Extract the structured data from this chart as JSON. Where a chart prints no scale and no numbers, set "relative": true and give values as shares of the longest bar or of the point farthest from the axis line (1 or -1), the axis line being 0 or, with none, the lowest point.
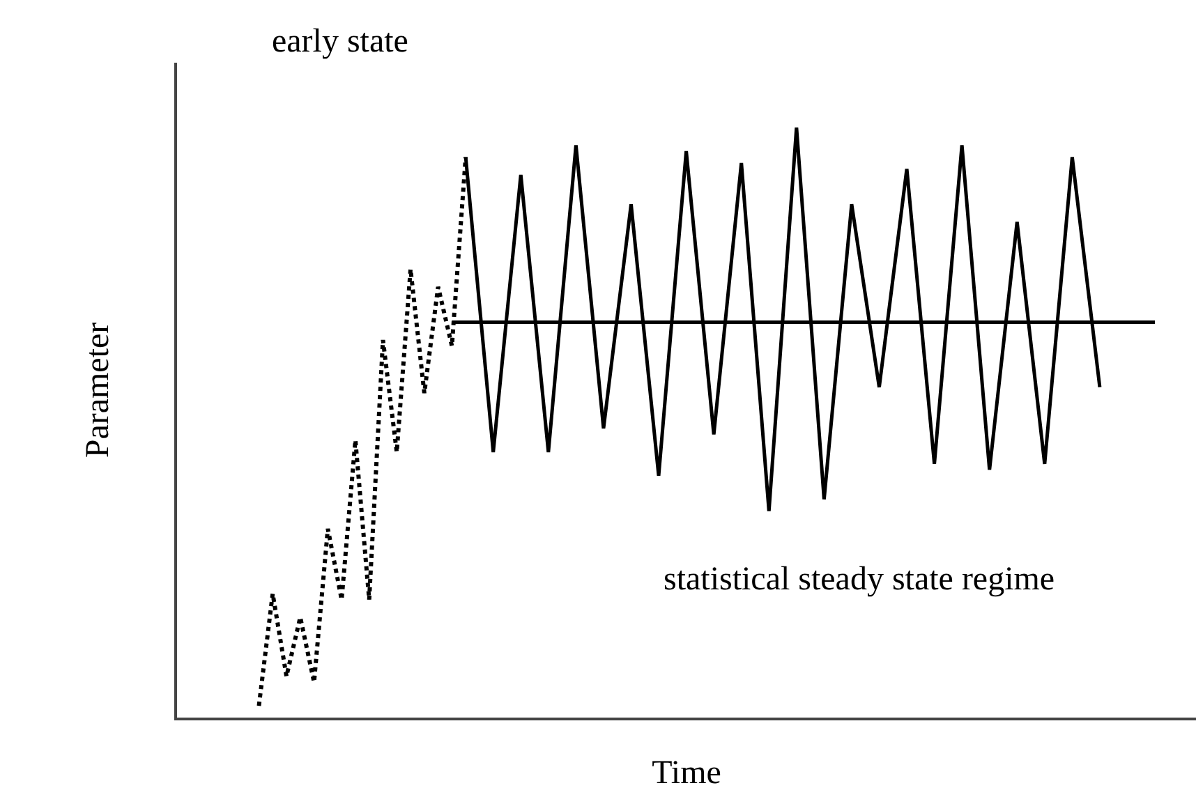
{
  "chart_data": {
    "type": "line",
    "relative": true,
    "xlabel": "Time",
    "ylabel": "Parameter",
    "marker": "none",
    "annotations": [
      "early state",
      "statistical steady state regime"
    ],
    "categories": [
      null,
      null,
      null,
      null,
      null,
      null,
      null,
      null,
      null,
      null,
      null,
      null,
      null,
      null,
      null,
      null,
      null,
      null,
      null,
      null,
      null,
      null,
      null,
      null,
      null,
      null,
      null,
      null,
      null,
      null,
      null,
      null,
      null,
      null,
      null,
      null,
      null,
      null,
      null,
      null,
      null,
      null,
      null,
      null,
      null,
      null,
      null,
      null,
      null,
      null,
      null,
      null,
      null,
      null,
      null,
      null,
      null,
      null,
      null,
      null,
      null,
      null,
      null,
      null,
      null,
      null
    ],
    "series": [
      {
        "color": "#000000",
        "line_style": "dotted",
        "values": [
          0.02,
          0.21,
          0.07,
          0.17,
          0.06,
          0.32,
          0.2,
          0.47,
          0.2,
          0.64,
          0.45,
          0.76,
          0.55,
          0.73,
          0.63,
          0.95,
          null,
          null,
          null,
          null,
          null,
          null,
          null,
          null,
          null,
          null,
          null,
          null,
          null,
          null,
          null,
          null,
          null,
          null,
          null,
          null,
          null,
          null,
          null,
          null,
          null,
          null,
          null,
          null,
          null,
          null,
          null,
          null,
          null,
          null,
          null,
          null,
          null,
          null,
          null,
          null,
          null,
          null,
          null,
          null,
          null,
          null,
          null,
          null,
          null,
          null
        ]
      },
      {
        "color": "#000000",
        "line_style": "solid",
        "values": [
          null,
          null,
          null,
          null,
          null,
          null,
          null,
          null,
          null,
          null,
          null,
          null,
          null,
          null,
          null,
          0.95,
          null,
          0.45,
          null,
          0.92,
          null,
          0.45,
          null,
          0.97,
          null,
          0.49,
          null,
          0.87,
          null,
          0.41,
          null,
          0.96,
          null,
          0.48,
          null,
          0.94,
          null,
          0.35,
          null,
          1.0,
          null,
          0.37,
          null,
          0.87,
          null,
          0.56,
          null,
          0.93,
          null,
          0.43,
          null,
          0.97,
          null,
          0.42,
          null,
          0.84,
          null,
          0.43,
          null,
          0.95,
          null,
          0.56,
          null,
          null,
          null,
          null
        ]
      },
      {
        "color": "#000000",
        "line_style": "solid",
        "values": [
          null,
          null,
          null,
          null,
          null,
          null,
          null,
          null,
          null,
          null,
          null,
          null,
          null,
          null,
          0.67,
          null,
          null,
          null,
          null,
          null,
          null,
          null,
          null,
          null,
          null,
          null,
          null,
          null,
          null,
          null,
          null,
          null,
          null,
          null,
          null,
          null,
          null,
          null,
          null,
          null,
          null,
          null,
          null,
          null,
          null,
          null,
          null,
          null,
          null,
          null,
          null,
          null,
          null,
          null,
          null,
          null,
          null,
          null,
          null,
          null,
          null,
          null,
          null,
          null,
          null,
          0.67
        ]
      }
    ]
  }
}
